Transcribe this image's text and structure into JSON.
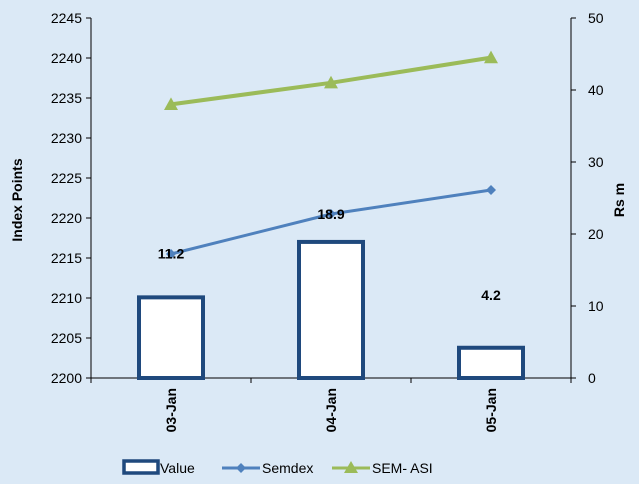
{
  "chart_data": {
    "type": "bar",
    "categories": [
      "03-Jan",
      "04-Jan",
      "05-Jan"
    ],
    "ylabel": "Index Points",
    "y2label": "Rs m",
    "ylim": [
      2200,
      2245
    ],
    "yticks": [
      2200,
      2205,
      2210,
      2215,
      2220,
      2225,
      2230,
      2235,
      2240,
      2245
    ],
    "y2lim": [
      0,
      50
    ],
    "y2ticks": [
      0,
      10,
      20,
      30,
      40,
      50
    ],
    "legend_position": "bottom",
    "grid": false,
    "series": [
      {
        "name": "Value",
        "type": "bar",
        "axis": "right",
        "values": [
          11.2,
          18.9,
          4.2
        ],
        "labels": [
          "11.2",
          "18.9",
          "4.2"
        ],
        "color": "#1f497d"
      },
      {
        "name": "Semdex",
        "type": "line",
        "axis": "left",
        "values": [
          2215.5,
          2220.5,
          2223.5
        ],
        "color": "#4f81bd"
      },
      {
        "name": "SEM- ASI",
        "type": "line",
        "axis": "right",
        "values": [
          38,
          41,
          44.5
        ],
        "color": "#9bbb59"
      }
    ]
  }
}
